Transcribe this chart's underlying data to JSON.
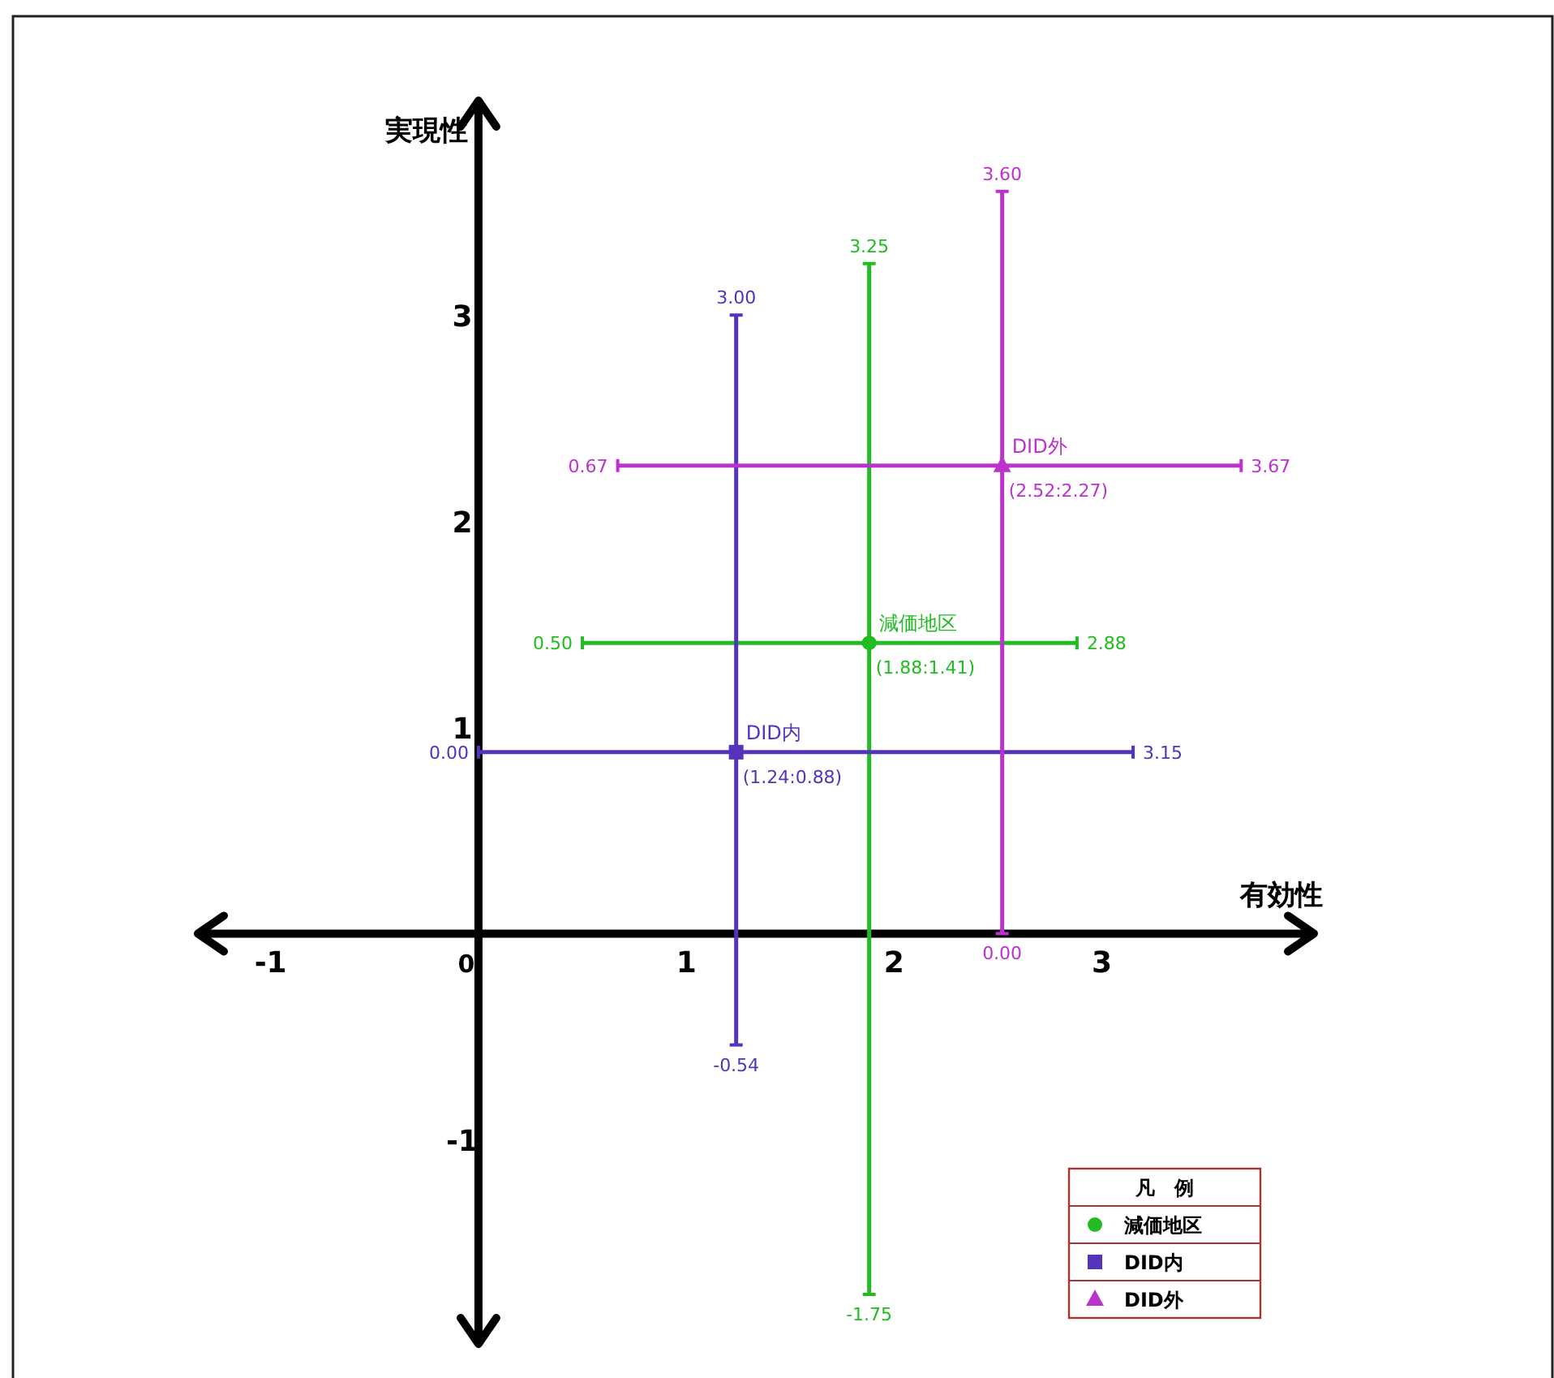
{
  "chart_data": {
    "type": "scatter",
    "xlabel": "有効性",
    "ylabel": "実現性",
    "legend_title": "凡　例",
    "legend": "bottom right",
    "xlim": [
      -1.35,
      4.02
    ],
    "ylim": [
      -1.99,
      4.04
    ],
    "xticks": [
      -1,
      0,
      1,
      2,
      3
    ],
    "yticks": [
      -1,
      1,
      2,
      3
    ],
    "series": [
      {
        "name": "減価地区",
        "color": "#22bb22",
        "marker": "circle",
        "x": [
          1.88
        ],
        "values": [
          1.41
        ],
        "xerrors": [
          [
            0.5,
            2.88
          ]
        ],
        "errors": [
          [
            -1.75,
            3.25
          ]
        ],
        "value_labels": [
          "(1.88:1.41)"
        ]
      },
      {
        "name": "DID内",
        "color": "#5533bb",
        "marker": "square",
        "x": [
          1.24
        ],
        "values": [
          0.88
        ],
        "xerrors": [
          [
            0.0,
            3.15
          ]
        ],
        "errors": [
          [
            -0.54,
            3.0
          ]
        ],
        "value_labels": [
          "(1.24:0.88)"
        ]
      },
      {
        "name": "DID外",
        "color": "#bb33cc",
        "marker": "triangle",
        "x": [
          2.52
        ],
        "values": [
          2.27
        ],
        "xerrors": [
          [
            0.67,
            3.67
          ]
        ],
        "errors": [
          [
            0.0,
            3.6
          ]
        ],
        "value_labels": [
          "(2.52:2.27)"
        ]
      }
    ],
    "annotations": [
      {
        "text": "0.50",
        "x": 0.5,
        "y": 1.41
      },
      {
        "text": "2.88",
        "x": 2.88,
        "y": 1.41
      },
      {
        "text": "3.25",
        "x": 1.88,
        "y": 3.25
      },
      {
        "text": "-1.75",
        "x": 1.88,
        "y": -1.75
      },
      {
        "text": "0.00",
        "x": 0.0,
        "y": 0.88
      },
      {
        "text": "3.15",
        "x": 3.15,
        "y": 0.88
      },
      {
        "text": "3.00",
        "x": 1.24,
        "y": 3.0
      },
      {
        "text": "-0.54",
        "x": 1.24,
        "y": -0.54
      },
      {
        "text": "0.67",
        "x": 0.67,
        "y": 2.27
      },
      {
        "text": "3.67",
        "x": 3.67,
        "y": 2.27
      },
      {
        "text": "3.60",
        "x": 2.52,
        "y": 3.6
      },
      {
        "text": "0.00",
        "x": 2.52,
        "y": 0.0
      }
    ]
  }
}
